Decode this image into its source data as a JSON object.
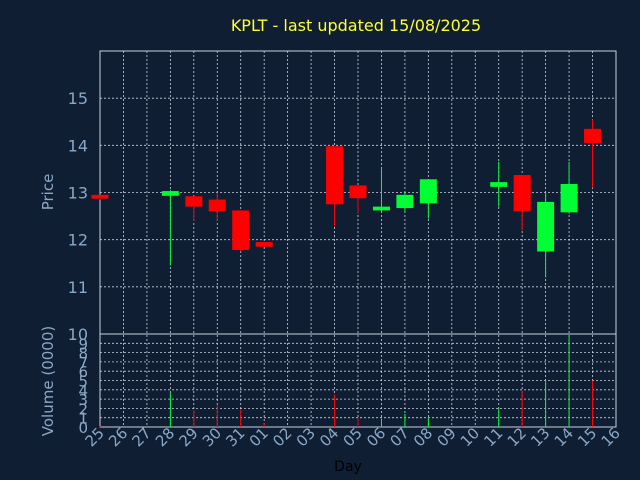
{
  "theme": {
    "background": "#0f1e32",
    "grid": "#c8d2dc",
    "axis_text": "#8aa8c8",
    "title_color": "#ffff33",
    "up_color": "#00ff33",
    "down_color": "#ff0000",
    "plot_border": "#c8d2dc"
  },
  "chart_data": {
    "type": "candlestick",
    "title": "KPLT - last updated 15/08/2025",
    "xlabel": "Day",
    "ylabel": "Price",
    "volume_label": "Volume (0000)",
    "ylim": [
      10,
      16
    ],
    "price_ticks": [
      10,
      11,
      12,
      13,
      14,
      15
    ],
    "volume_ylim": [
      0,
      10
    ],
    "volume_ticks": [
      0,
      1,
      2,
      3,
      4,
      5,
      6,
      7,
      8,
      9
    ],
    "x_tick_labels": [
      "25",
      "26",
      "27",
      "28",
      "29",
      "30",
      "31",
      "01",
      "02",
      "03",
      "04",
      "05",
      "06",
      "07",
      "08",
      "09",
      "10",
      "11",
      "12",
      "13",
      "14",
      "15",
      "16"
    ],
    "grid": true,
    "candles": [
      {
        "day": "25",
        "open": 12.95,
        "high": 12.95,
        "low": 12.85,
        "close": 12.87,
        "volume": 0.1
      },
      {
        "day": "28",
        "open": 12.93,
        "high": 13.05,
        "low": 11.45,
        "close": 13.03,
        "volume": 3.7
      },
      {
        "day": "29",
        "open": 12.92,
        "high": 12.92,
        "low": 12.4,
        "close": 12.7,
        "volume": 1.8
      },
      {
        "day": "30",
        "open": 12.85,
        "high": 13.0,
        "low": 12.4,
        "close": 12.6,
        "volume": 2.4
      },
      {
        "day": "31",
        "open": 12.62,
        "high": 12.62,
        "low": 11.75,
        "close": 11.78,
        "volume": 1.9
      },
      {
        "day": "01",
        "open": 11.95,
        "high": 11.95,
        "low": 11.85,
        "close": 11.85,
        "volume": 0.4
      },
      {
        "day": "04",
        "open": 13.98,
        "high": 13.98,
        "low": 12.28,
        "close": 12.75,
        "volume": 3.5
      },
      {
        "day": "05",
        "open": 13.15,
        "high": 13.15,
        "low": 12.55,
        "close": 12.88,
        "volume": 1.0
      },
      {
        "day": "06",
        "open": 12.62,
        "high": 13.5,
        "low": 12.6,
        "close": 12.7,
        "volume": 0.9
      },
      {
        "day": "07",
        "open": 12.67,
        "high": 13.0,
        "low": 12.6,
        "close": 12.95,
        "volume": 1.4
      },
      {
        "day": "08",
        "open": 12.77,
        "high": 13.28,
        "low": 12.45,
        "close": 13.28,
        "volume": 1.0
      },
      {
        "day": "11",
        "open": 13.12,
        "high": 13.65,
        "low": 12.7,
        "close": 13.22,
        "volume": 2.0
      },
      {
        "day": "12",
        "open": 13.37,
        "high": 13.37,
        "low": 12.2,
        "close": 12.6,
        "volume": 3.9
      },
      {
        "day": "13",
        "open": 11.75,
        "high": 13.0,
        "low": 11.2,
        "close": 12.8,
        "volume": 5.0
      },
      {
        "day": "14",
        "open": 12.58,
        "high": 13.65,
        "low": 12.55,
        "close": 13.18,
        "volume": 9.8
      },
      {
        "day": "15",
        "open": 14.35,
        "high": 14.55,
        "low": 13.1,
        "close": 14.05,
        "volume": 5.0
      }
    ]
  }
}
